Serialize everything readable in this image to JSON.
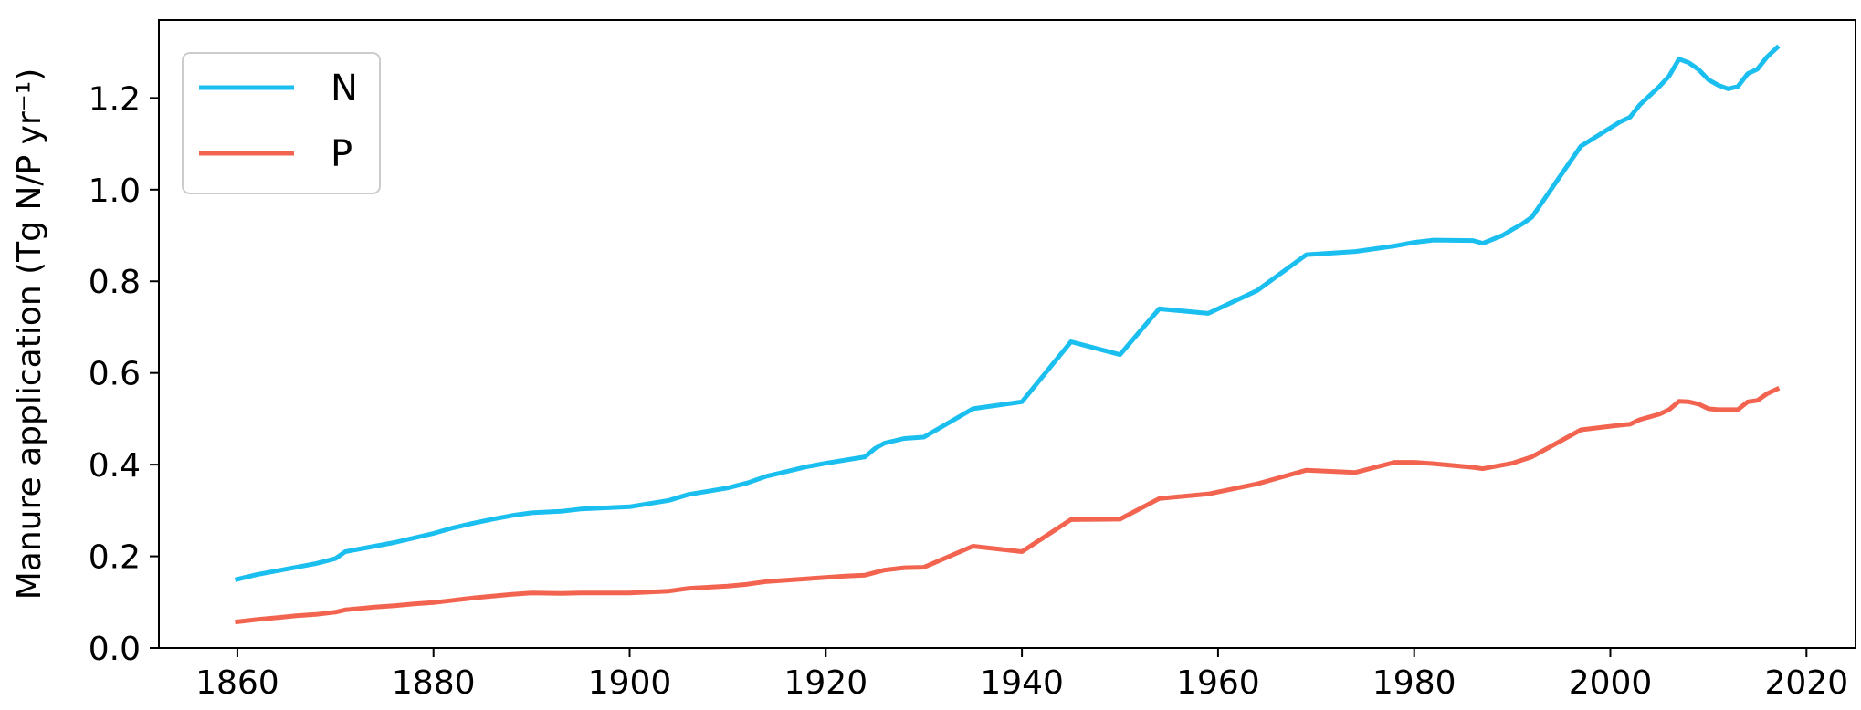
{
  "chart_data": {
    "type": "line",
    "title": "",
    "xlabel": "",
    "ylabel": "Manure application",
    "ylabel_unit": "(Tg N/P yr⁻¹)",
    "xlim": [
      1852,
      2025
    ],
    "ylim": [
      0,
      1.37
    ],
    "x_ticks": [
      1860,
      1880,
      1900,
      1920,
      1940,
      1960,
      1980,
      2000,
      2020
    ],
    "x_tick_labels": [
      "1860",
      "1880",
      "1900",
      "1920",
      "1940",
      "1960",
      "1980",
      "2000",
      "2020"
    ],
    "y_ticks": [
      0,
      0.2,
      0.4,
      0.6,
      0.8,
      1.0,
      1.2
    ],
    "y_tick_labels": [
      "0.0",
      "0.2",
      "0.4",
      "0.6",
      "0.8",
      "1.0",
      "1.2"
    ],
    "grid": false,
    "legend_position": "top-left",
    "series": [
      {
        "name": "N",
        "color": "#1ABFF0",
        "points": [
          [
            1860,
            0.15
          ],
          [
            1862,
            0.16
          ],
          [
            1864,
            0.168
          ],
          [
            1866,
            0.176
          ],
          [
            1868,
            0.184
          ],
          [
            1870,
            0.195
          ],
          [
            1871,
            0.21
          ],
          [
            1874,
            0.222
          ],
          [
            1876,
            0.23
          ],
          [
            1878,
            0.24
          ],
          [
            1880,
            0.25
          ],
          [
            1882,
            0.262
          ],
          [
            1884,
            0.272
          ],
          [
            1886,
            0.281
          ],
          [
            1888,
            0.289
          ],
          [
            1890,
            0.295
          ],
          [
            1893,
            0.298
          ],
          [
            1895,
            0.303
          ],
          [
            1900,
            0.308
          ],
          [
            1902,
            0.315
          ],
          [
            1904,
            0.322
          ],
          [
            1906,
            0.335
          ],
          [
            1908,
            0.342
          ],
          [
            1910,
            0.349
          ],
          [
            1912,
            0.36
          ],
          [
            1914,
            0.375
          ],
          [
            1916,
            0.385
          ],
          [
            1918,
            0.395
          ],
          [
            1920,
            0.403
          ],
          [
            1922,
            0.41
          ],
          [
            1924,
            0.417
          ],
          [
            1925,
            0.435
          ],
          [
            1926,
            0.447
          ],
          [
            1928,
            0.457
          ],
          [
            1930,
            0.46
          ],
          [
            1935,
            0.522
          ],
          [
            1940,
            0.537
          ],
          [
            1945,
            0.668
          ],
          [
            1950,
            0.64
          ],
          [
            1954,
            0.74
          ],
          [
            1959,
            0.73
          ],
          [
            1964,
            0.78
          ],
          [
            1969,
            0.858
          ],
          [
            1974,
            0.865
          ],
          [
            1978,
            0.877
          ],
          [
            1980,
            0.885
          ],
          [
            1982,
            0.89
          ],
          [
            1986,
            0.889
          ],
          [
            1987,
            0.883
          ],
          [
            1989,
            0.9
          ],
          [
            1990,
            0.913
          ],
          [
            1991,
            0.925
          ],
          [
            1992,
            0.94
          ],
          [
            1997,
            1.095
          ],
          [
            2001,
            1.148
          ],
          [
            2002,
            1.158
          ],
          [
            2003,
            1.185
          ],
          [
            2005,
            1.225
          ],
          [
            2006,
            1.248
          ],
          [
            2007,
            1.285
          ],
          [
            2008,
            1.277
          ],
          [
            2009,
            1.262
          ],
          [
            2010,
            1.24
          ],
          [
            2011,
            1.228
          ],
          [
            2012,
            1.22
          ],
          [
            2013,
            1.225
          ],
          [
            2014,
            1.253
          ],
          [
            2015,
            1.263
          ],
          [
            2016,
            1.29
          ],
          [
            2017,
            1.31
          ]
        ]
      },
      {
        "name": "P",
        "color": "#F26450",
        "points": [
          [
            1860,
            0.057
          ],
          [
            1862,
            0.062
          ],
          [
            1864,
            0.066
          ],
          [
            1866,
            0.07
          ],
          [
            1868,
            0.073
          ],
          [
            1870,
            0.078
          ],
          [
            1871,
            0.083
          ],
          [
            1874,
            0.089
          ],
          [
            1876,
            0.092
          ],
          [
            1878,
            0.096
          ],
          [
            1880,
            0.099
          ],
          [
            1882,
            0.104
          ],
          [
            1884,
            0.109
          ],
          [
            1886,
            0.113
          ],
          [
            1888,
            0.117
          ],
          [
            1890,
            0.12
          ],
          [
            1893,
            0.119
          ],
          [
            1895,
            0.12
          ],
          [
            1900,
            0.12
          ],
          [
            1904,
            0.124
          ],
          [
            1906,
            0.13
          ],
          [
            1910,
            0.135
          ],
          [
            1912,
            0.139
          ],
          [
            1914,
            0.145
          ],
          [
            1918,
            0.151
          ],
          [
            1920,
            0.154
          ],
          [
            1922,
            0.157
          ],
          [
            1924,
            0.159
          ],
          [
            1926,
            0.17
          ],
          [
            1928,
            0.175
          ],
          [
            1930,
            0.176
          ],
          [
            1935,
            0.222
          ],
          [
            1940,
            0.21
          ],
          [
            1945,
            0.28
          ],
          [
            1950,
            0.281
          ],
          [
            1954,
            0.326
          ],
          [
            1959,
            0.336
          ],
          [
            1964,
            0.358
          ],
          [
            1969,
            0.388
          ],
          [
            1974,
            0.383
          ],
          [
            1978,
            0.405
          ],
          [
            1980,
            0.405
          ],
          [
            1982,
            0.402
          ],
          [
            1986,
            0.394
          ],
          [
            1987,
            0.391
          ],
          [
            1990,
            0.403
          ],
          [
            1992,
            0.417
          ],
          [
            1997,
            0.476
          ],
          [
            2001,
            0.486
          ],
          [
            2002,
            0.488
          ],
          [
            2003,
            0.498
          ],
          [
            2005,
            0.51
          ],
          [
            2006,
            0.52
          ],
          [
            2007,
            0.538
          ],
          [
            2008,
            0.537
          ],
          [
            2009,
            0.532
          ],
          [
            2010,
            0.522
          ],
          [
            2011,
            0.52
          ],
          [
            2012,
            0.52
          ],
          [
            2013,
            0.52
          ],
          [
            2014,
            0.537
          ],
          [
            2015,
            0.54
          ],
          [
            2016,
            0.555
          ],
          [
            2017,
            0.565
          ]
        ]
      }
    ]
  }
}
